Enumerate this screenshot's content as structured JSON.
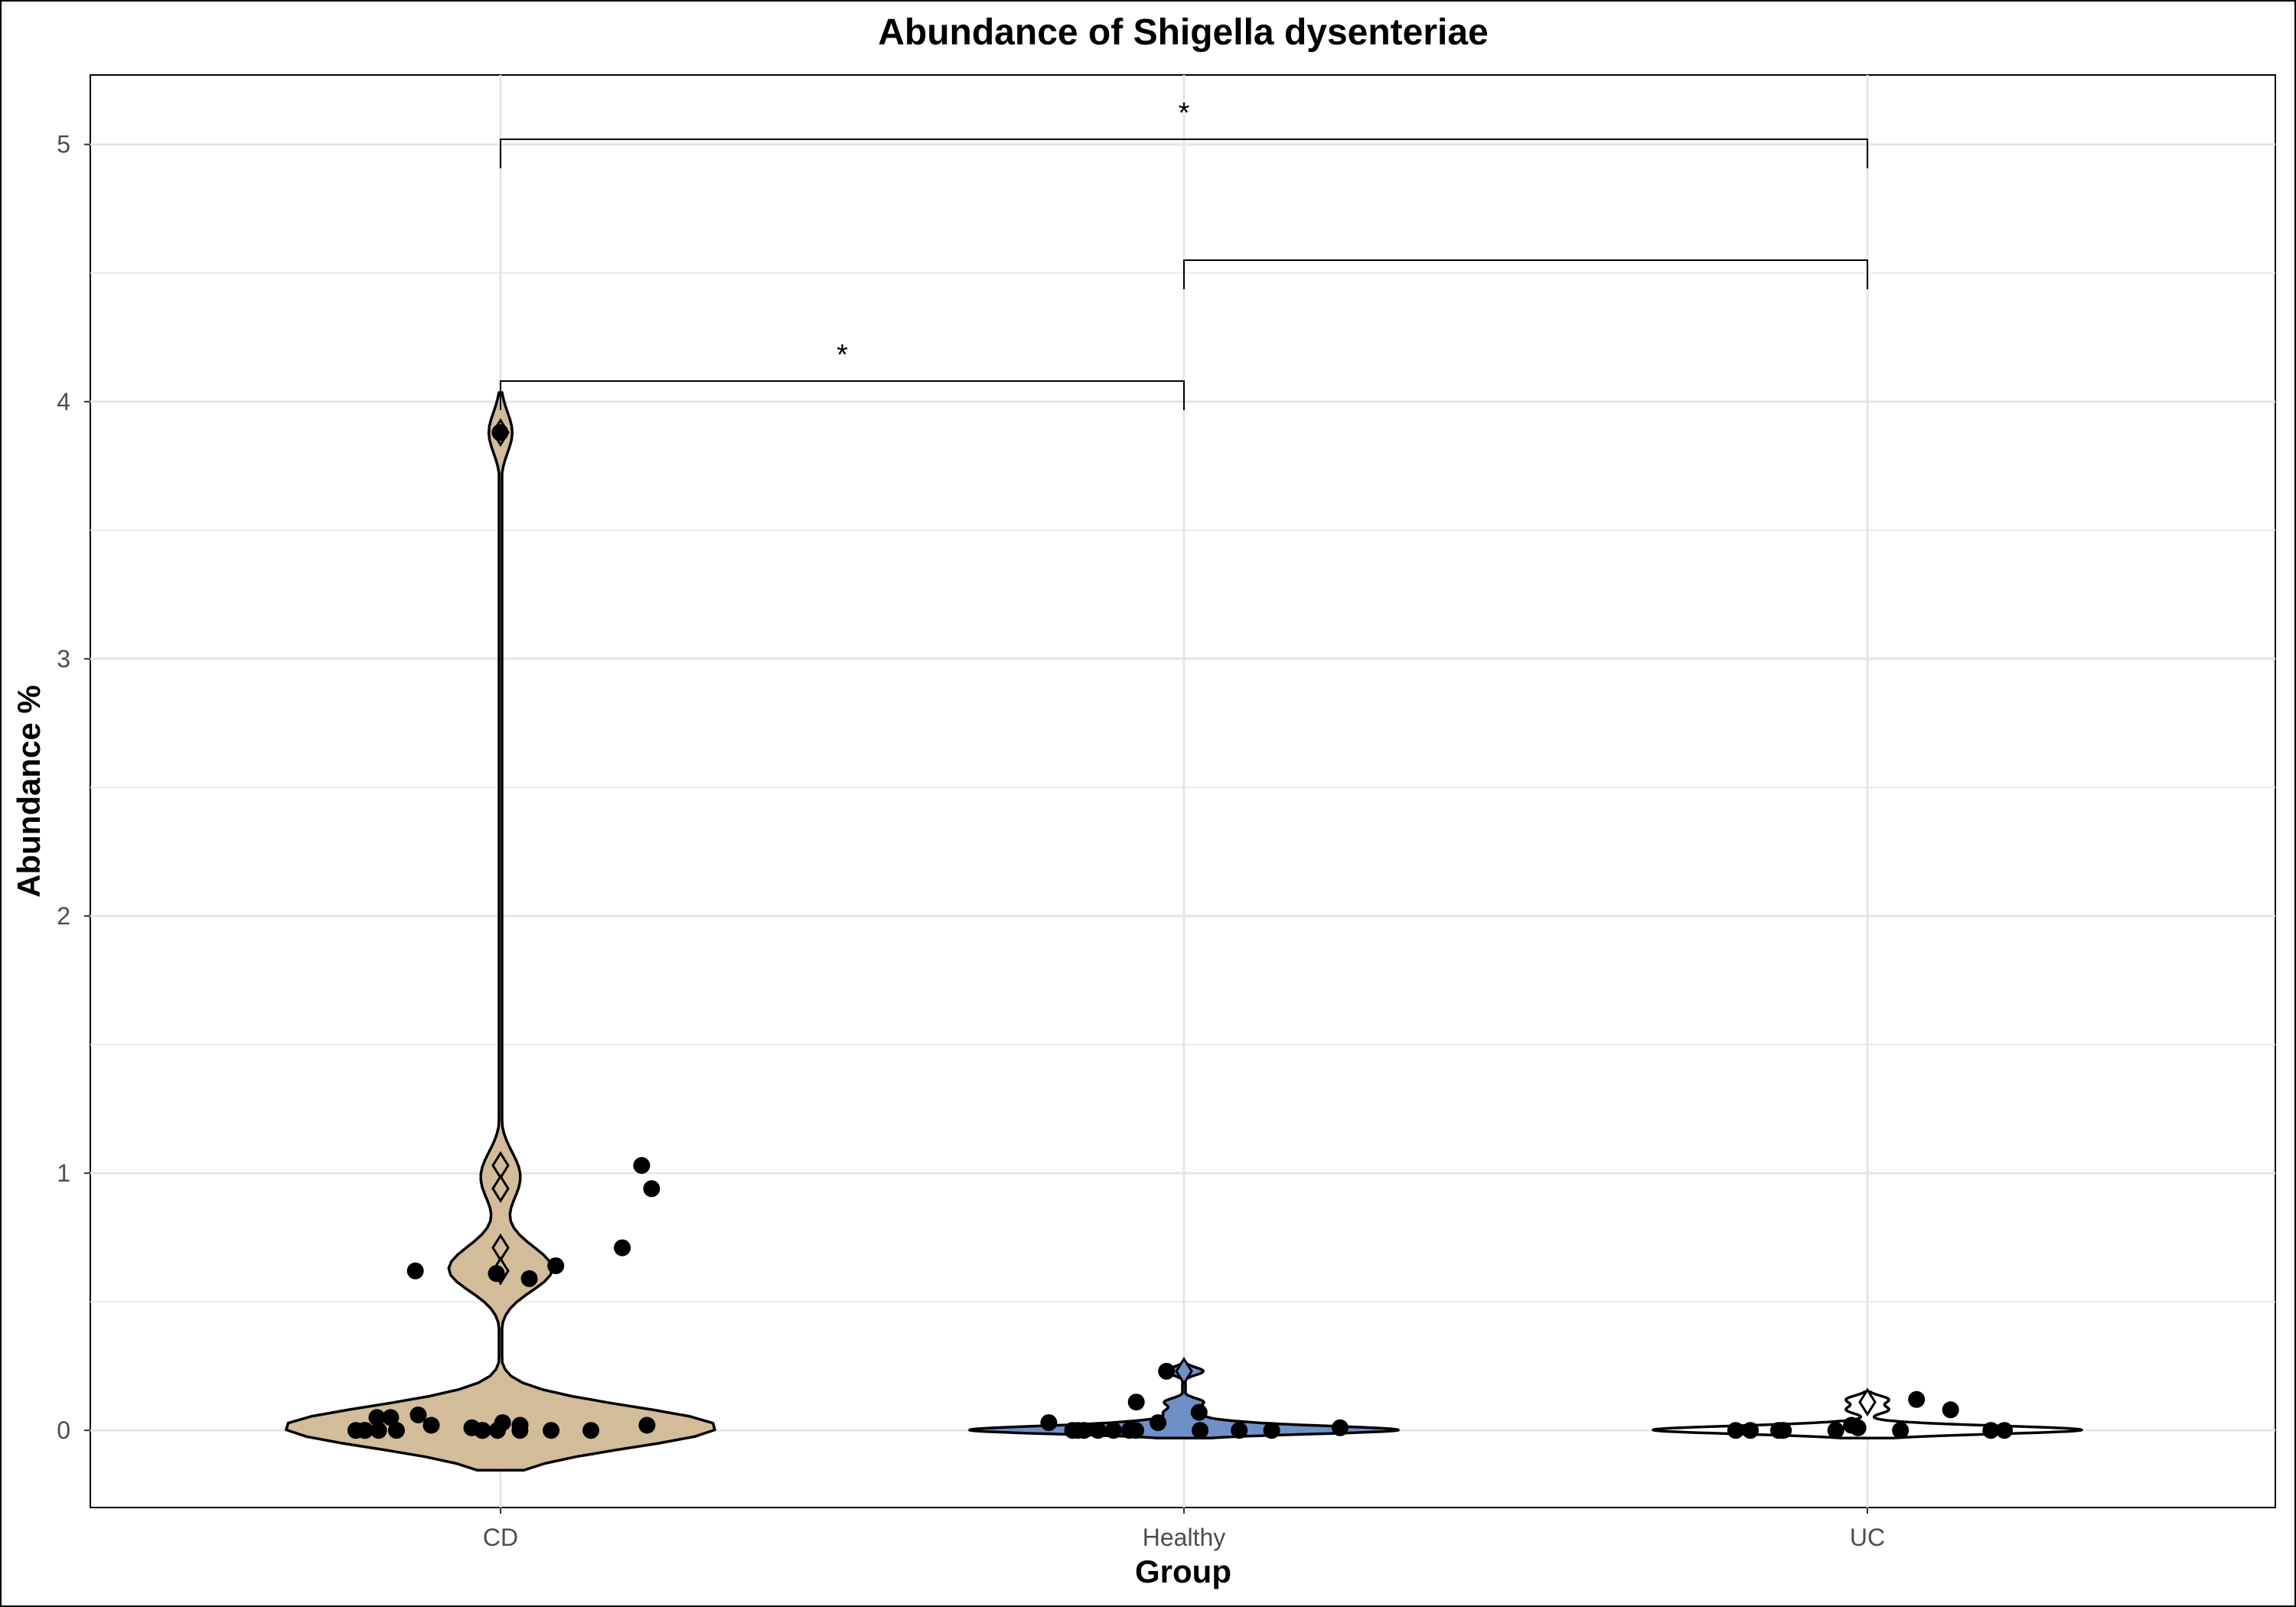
{
  "chart_data": {
    "type": "violin",
    "title": "Abundance of Shigella dysenteriae",
    "xlabel": "Group",
    "ylabel": "Abundance %",
    "categories": [
      "CD",
      "Healthy",
      "UC"
    ],
    "ylim": [
      -0.3,
      5.27
    ],
    "yticks": [
      0,
      1,
      2,
      3,
      4,
      5
    ],
    "grid": true,
    "legend": "none",
    "colors": {
      "CD": "#d2bc9a",
      "Healthy": "#6f8fc7",
      "UC": "#ffffff"
    },
    "groups": [
      {
        "name": "CD",
        "points": [
          0,
          0.02,
          0.05,
          0.06,
          0,
          0.03,
          0,
          0.71,
          0.59,
          0.01,
          0.02,
          0,
          0,
          0,
          3.88,
          0.62,
          0.64,
          0.05,
          0,
          0.61,
          0,
          0,
          1.03,
          0.94,
          0,
          0,
          0.02
        ],
        "median_points": [
          3.88,
          1.03,
          0.94,
          0.71,
          0.62
        ]
      },
      {
        "name": "Healthy",
        "points": [
          0,
          0.03,
          0,
          0,
          0,
          0,
          0.01,
          0.23,
          0,
          0.07,
          0,
          0,
          0,
          0.11,
          0,
          0.03
        ],
        "median_points": [
          0.23
        ]
      },
      {
        "name": "UC",
        "points": [
          0,
          0,
          0,
          0.01,
          0,
          0,
          0,
          0.08,
          0.12,
          0,
          0,
          0.02,
          0
        ],
        "median_points": [
          0.11
        ]
      }
    ],
    "comparisons": [
      {
        "from": "CD",
        "to": "UC",
        "y": 5.02,
        "label": "*"
      },
      {
        "from": "Healthy",
        "to": "UC",
        "y": 4.55,
        "label": ""
      },
      {
        "from": "CD",
        "to": "Healthy",
        "y": 4.08,
        "label": "*"
      }
    ]
  }
}
